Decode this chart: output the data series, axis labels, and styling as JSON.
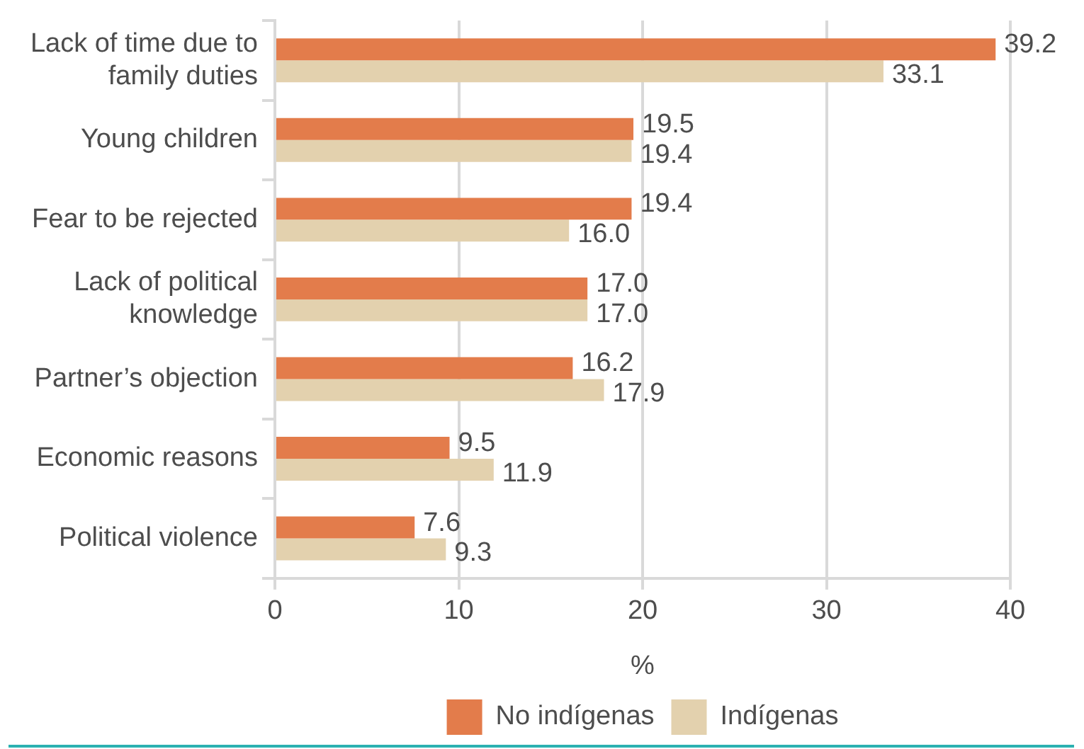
{
  "chart_data": {
    "type": "bar",
    "orientation": "horizontal",
    "categories": [
      "Lack of time due to family duties",
      "Young children",
      "Fear to be rejected",
      "Lack of political knowledge",
      "Partner’s objection",
      "Economic reasons",
      "Political violence"
    ],
    "series": [
      {
        "name": "No indígenas",
        "color": "#e37c4b",
        "values": [
          39.2,
          19.5,
          19.4,
          17.0,
          16.2,
          9.5,
          7.6
        ],
        "value_labels": [
          "39.2",
          "19.5",
          "19.4",
          "17.0",
          "16.2",
          "9.5",
          "7.6"
        ]
      },
      {
        "name": "Indígenas",
        "color": "#e3d1ae",
        "values": [
          33.1,
          19.4,
          16.0,
          17.0,
          17.9,
          11.9,
          9.3
        ],
        "value_labels": [
          "33.1",
          "19.4",
          "16.0",
          "17.0",
          "17.9",
          "11.9",
          "9.3"
        ]
      }
    ],
    "xlabel": "%",
    "xlim": [
      0,
      40
    ],
    "xticks": [
      0,
      10,
      20,
      30,
      40
    ],
    "grid": "x",
    "legend": "bottom"
  }
}
